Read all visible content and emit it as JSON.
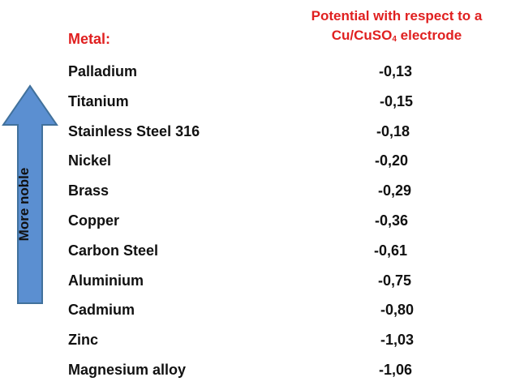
{
  "header": {
    "potential_line1": "Potential with respect to a",
    "potential_line2_pre": "Cu/CuSO",
    "potential_line2_sub": "4",
    "potential_line2_post": " electrode",
    "metal_label": "Metal:"
  },
  "arrow": {
    "label": "More noble",
    "color": "#5b8fd1"
  },
  "rows": [
    {
      "metal": "Palladium",
      "potential": "-0,13"
    },
    {
      "metal": "Titanium",
      "potential": "-0,15"
    },
    {
      "metal": "Stainless Steel 316",
      "potential": "-0,18"
    },
    {
      "metal": "Nickel",
      "potential": "-0,20"
    },
    {
      "metal": "Brass",
      "potential": "-0,29"
    },
    {
      "metal": "Copper",
      "potential": "-0,36"
    },
    {
      "metal": "Carbon Steel",
      "potential": "-0,61"
    },
    {
      "metal": "Aluminium",
      "potential": "-0,75"
    },
    {
      "metal": "Cadmium",
      "potential": "-0,80"
    },
    {
      "metal": "Zinc",
      "potential": "-1,03"
    },
    {
      "metal": "Magnesium alloy",
      "potential": "-1,06"
    }
  ],
  "colors": {
    "header": "#e02020",
    "text": "#111111",
    "arrow": "#5b8fd1"
  }
}
